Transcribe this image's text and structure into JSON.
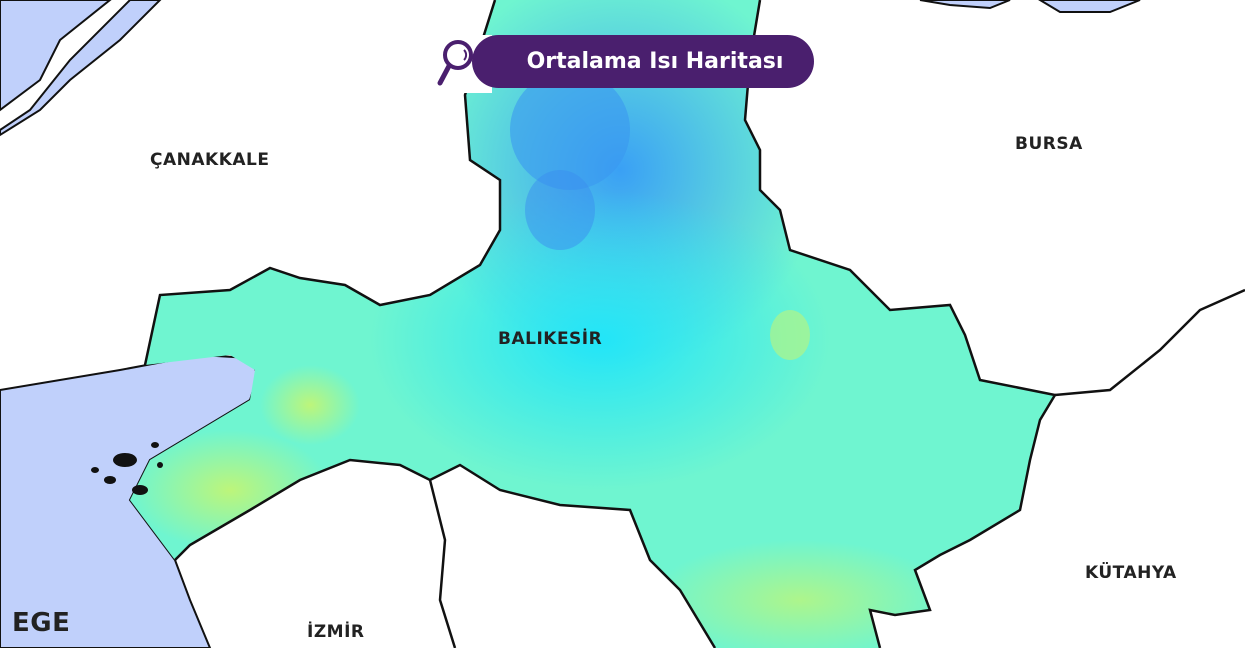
{
  "title": "Ortalama Isı Haritası",
  "title_icon": "search-icon",
  "labels": {
    "canakkale": "ÇANAKKALE",
    "bursa": "BURSA",
    "balikesir": "BALIKESİR",
    "kutahya": "KÜTAHYA",
    "izmir": "İZMİR",
    "ege": "EGE"
  },
  "colors": {
    "badge": "#4a1f6e",
    "sea": "#c0d0fb",
    "cold": "#3aa4f5",
    "mid": "#22e8f5",
    "warm": "#6ff5d0",
    "hot": "#b8f57a"
  }
}
